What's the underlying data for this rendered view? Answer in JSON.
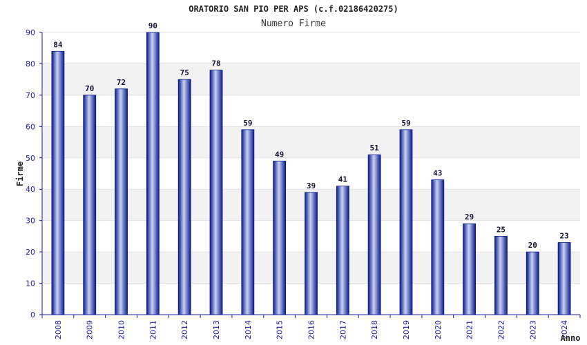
{
  "chart_data": {
    "type": "bar",
    "title": "ORATORIO SAN PIO PER APS (c.f.02186420275)",
    "subtitle": "Numero Firme",
    "xlabel": "Anno",
    "ylabel": "Firme",
    "ylim": [
      0,
      90
    ],
    "yticks": [
      "0",
      "10",
      "20",
      "30",
      "40",
      "50",
      "60",
      "70",
      "80",
      "90"
    ],
    "grid": true,
    "categories": [
      "2008",
      "2009",
      "2010",
      "2011",
      "2012",
      "2013",
      "2014",
      "2015",
      "2016",
      "2017",
      "2018",
      "2019",
      "2020",
      "2021",
      "2022",
      "2023",
      "2024"
    ],
    "values": [
      84,
      70,
      72,
      90,
      75,
      78,
      59,
      49,
      39,
      41,
      51,
      59,
      43,
      29,
      25,
      20,
      23
    ],
    "colors": {
      "bar_dark": "#0a1a8a",
      "bar_light": "#c8d2f5",
      "band": "#f2f2f2",
      "axis": "#1a1aa6"
    }
  }
}
